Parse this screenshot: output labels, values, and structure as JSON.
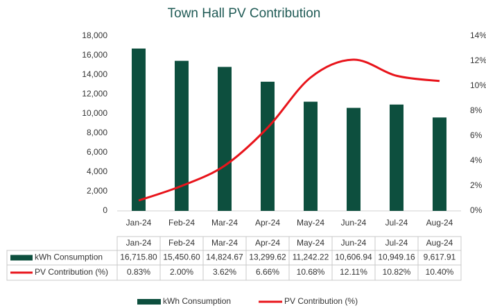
{
  "chart_data": {
    "type": "bar",
    "title": "Town Hall PV Contribution",
    "categories": [
      "Jan-24",
      "Feb-24",
      "Mar-24",
      "Apr-24",
      "May-24",
      "Jun-24",
      "Jul-24",
      "Aug-24"
    ],
    "series": [
      {
        "name": "kWh Consumption",
        "type": "bar",
        "color": "#0d4f3e",
        "values": [
          16715.8,
          15450.6,
          14824.67,
          13299.62,
          11242.22,
          10606.94,
          10949.16,
          9617.91
        ],
        "value_labels": [
          "16,715.80",
          "15,450.60",
          "14,824.67",
          "13,299.62",
          "11,242.22",
          "10,606.94",
          "10,949.16",
          "9,617.91"
        ]
      },
      {
        "name": "PV Contribution (%)",
        "type": "line",
        "axis": "y2",
        "color": "#e8141b",
        "values": [
          0.83,
          2.0,
          3.62,
          6.66,
          10.68,
          12.11,
          10.82,
          10.4
        ],
        "value_labels": [
          "0.83%",
          "2.00%",
          "3.62%",
          "6.66%",
          "10.68%",
          "12.11%",
          "10.82%",
          "10.40%"
        ]
      }
    ],
    "ylim": [
      0,
      18000
    ],
    "yticks": [
      0,
      {
        "value": 2000,
        "label": "2,000"
      },
      {
        "value": 4000,
        "label": "4,000"
      },
      {
        "value": 6000,
        "label": "6,000"
      },
      {
        "value": 8000,
        "label": "8,000"
      },
      {
        "value": 10000,
        "label": "10,000"
      },
      {
        "value": 12000,
        "label": "12,000"
      },
      {
        "value": 14000,
        "label": "14,000"
      },
      {
        "value": 16000,
        "label": "16,000"
      },
      {
        "value": 18000,
        "label": "18,000"
      }
    ],
    "y2lim": [
      0,
      14
    ],
    "y2ticks": [
      {
        "value": 0,
        "label": "0%"
      },
      {
        "value": 2,
        "label": "2%"
      },
      {
        "value": 4,
        "label": "4%"
      },
      {
        "value": 6,
        "label": "6%"
      },
      {
        "value": 8,
        "label": "8%"
      },
      {
        "value": 10,
        "label": "10%"
      },
      {
        "value": 12,
        "label": "12%"
      },
      {
        "value": 14,
        "label": "14%"
      }
    ],
    "grid": false,
    "legend": "bottom",
    "data_table": true
  }
}
